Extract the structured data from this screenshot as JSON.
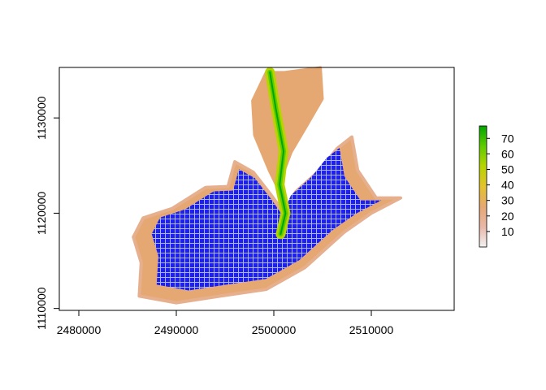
{
  "chart_data": {
    "type": "heatmap",
    "title": "",
    "xlabel": "",
    "ylabel": "",
    "xlim": [
      2478000,
      2518500
    ],
    "ylim": [
      1109800,
      1135300
    ],
    "x_ticks": [
      2480000,
      2490000,
      2500000,
      2510000
    ],
    "x_tick_labels": [
      "2480000",
      "2490000",
      "2500000",
      "2510000"
    ],
    "y_ticks": [
      1110000,
      1120000,
      1130000
    ],
    "y_tick_labels": [
      "1110000",
      "1120000",
      "1130000"
    ],
    "legend": {
      "position": "right",
      "range": [
        0,
        78
      ],
      "ticks": [
        10,
        20,
        30,
        40,
        50,
        60,
        70
      ],
      "tick_labels": [
        "10",
        "20",
        "30",
        "40",
        "50",
        "60",
        "70"
      ],
      "colors": [
        "#f2f2f2",
        "#e8b7a8",
        "#e6a873",
        "#e3c22c",
        "#b7d400",
        "#5fcc00",
        "#00a600"
      ]
    },
    "overlay": {
      "description_color": "#0000ff",
      "grid_spacing": 500
    },
    "regions": {
      "lake_axis": [
        [
          2499600,
          1134800
        ],
        [
          2500200,
          1131000
        ],
        [
          2501000,
          1126500
        ],
        [
          2500600,
          1123000
        ],
        [
          2501200,
          1120000
        ],
        [
          2500700,
          1117800
        ]
      ],
      "southwest_basin": [
        [
          2486200,
          1111300
        ],
        [
          2490000,
          1110600
        ],
        [
          2494500,
          1111300
        ],
        [
          2499200,
          1112000
        ],
        [
          2503200,
          1114300
        ],
        [
          2507200,
          1118000
        ],
        [
          2510000,
          1120000
        ],
        [
          2513000,
          1121600
        ],
        [
          2510500,
          1121600
        ],
        [
          2508600,
          1124500
        ],
        [
          2508000,
          1128000
        ],
        [
          2506500,
          1126800
        ],
        [
          2504700,
          1124500
        ],
        [
          2502200,
          1122200
        ],
        [
          2501200,
          1119800
        ],
        [
          2499800,
          1121800
        ],
        [
          2497900,
          1124300
        ],
        [
          2496000,
          1125400
        ],
        [
          2495300,
          1122800
        ],
        [
          2493000,
          1122700
        ],
        [
          2489600,
          1120500
        ],
        [
          2486600,
          1119500
        ],
        [
          2485600,
          1117500
        ],
        [
          2486400,
          1114800
        ]
      ],
      "north_shore": [
        [
          2499200,
          1134800
        ],
        [
          2501100,
          1134800
        ],
        [
          2504800,
          1135300
        ],
        [
          2505000,
          1132000
        ],
        [
          2503300,
          1129000
        ],
        [
          2501800,
          1126400
        ],
        [
          2500400,
          1122600
        ],
        [
          2499500,
          1124500
        ],
        [
          2498000,
          1128200
        ],
        [
          2497800,
          1131800
        ]
      ]
    }
  }
}
